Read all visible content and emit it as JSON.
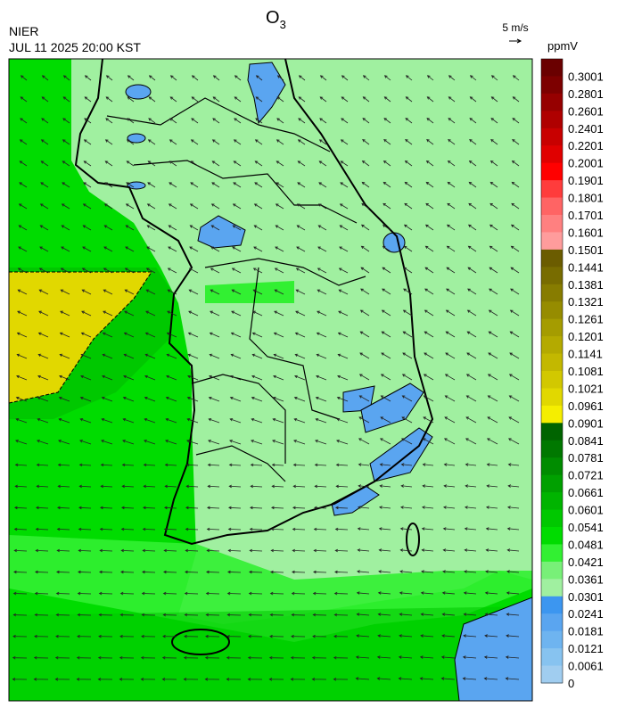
{
  "header": {
    "title": {
      "base": "O",
      "sub": "3"
    },
    "agency": "NIER",
    "datetime": "JUL 11 2025 20:00 KST",
    "wind_scale": "5 m/s"
  },
  "colorbar": {
    "title": "ppmV",
    "labels": [
      "0.3001",
      "0.2801",
      "0.2601",
      "0.2401",
      "0.2201",
      "0.2001",
      "0.1901",
      "0.1801",
      "0.1701",
      "0.1601",
      "0.1501",
      "0.1441",
      "0.1381",
      "0.1321",
      "0.1261",
      "0.1201",
      "0.1141",
      "0.1081",
      "0.1021",
      "0.0961",
      "0.0901",
      "0.0841",
      "0.0781",
      "0.0721",
      "0.0661",
      "0.0601",
      "0.0541",
      "0.0481",
      "0.0421",
      "0.0361",
      "0.0301",
      "0.0241",
      "0.0181",
      "0.0121",
      "0.0061",
      "0"
    ],
    "colors": [
      "#6a0000",
      "#7d0000",
      "#960000",
      "#af0000",
      "#c80000",
      "#e00000",
      "#ff0000",
      "#ff3c3c",
      "#ff6464",
      "#ff8080",
      "#ff9c9c",
      "#6b5c00",
      "#786c00",
      "#877c00",
      "#968c00",
      "#a59c00",
      "#b4aa00",
      "#c3b800",
      "#d2c800",
      "#e1d800",
      "#f5ee00",
      "#006400",
      "#007800",
      "#008c00",
      "#00a000",
      "#00b400",
      "#00c800",
      "#00dc00",
      "#32f032",
      "#78f078",
      "#a0f0a0",
      "#3c96f0",
      "#5aa5f0",
      "#6eb4f0",
      "#87c3f0",
      "#a0cdf0"
    ]
  }
}
